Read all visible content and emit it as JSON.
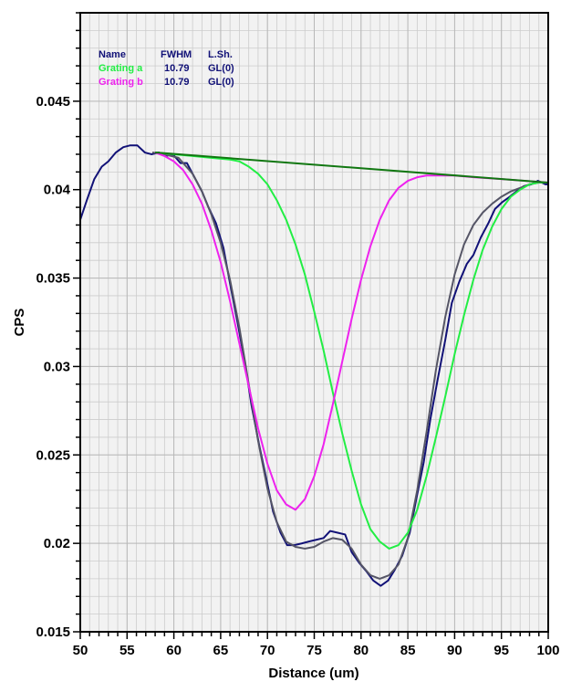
{
  "chart_data": {
    "type": "line",
    "xlabel": "Distance (um)",
    "ylabel": "CPS",
    "xlim": [
      50,
      100
    ],
    "ylim": [
      0.015,
      0.05
    ],
    "x_ticks": [
      50,
      55,
      60,
      65,
      70,
      75,
      80,
      85,
      90,
      95,
      100
    ],
    "x_tick_labels": [
      "50",
      "55",
      "60",
      "65",
      "70",
      "75",
      "80",
      "85",
      "90",
      "95",
      "100"
    ],
    "y_ticks": [
      0.015,
      0.02,
      0.025,
      0.03,
      0.035,
      0.04,
      0.045
    ],
    "y_tick_labels": [
      "0.015",
      "0.02",
      "0.025",
      "0.03",
      "0.035",
      "0.04",
      "0.045"
    ],
    "grid": true,
    "background": "#f2f2f2",
    "legend": {
      "placement": "top-left",
      "header": {
        "name": "Name",
        "fwhm": "FWHM",
        "lsh": "L.Sh."
      },
      "rows": [
        {
          "name": "Grating a",
          "fwhm": "10.79",
          "lsh": "GL(0)",
          "color": "#22ee44"
        },
        {
          "name": "Grating b",
          "fwhm": "10.79",
          "lsh": "GL(0)",
          "color": "#ee22ee"
        }
      ]
    },
    "series": [
      {
        "key": "measured",
        "color": "#111177",
        "points": [
          [
            50,
            0.0383
          ],
          [
            50.7,
            0.0394
          ],
          [
            51.5,
            0.0406
          ],
          [
            52.3,
            0.0413
          ],
          [
            53,
            0.0416
          ],
          [
            53.8,
            0.0421
          ],
          [
            54.6,
            0.0424
          ],
          [
            55.3,
            0.0425
          ],
          [
            56.1,
            0.0425
          ],
          [
            56.9,
            0.0421
          ],
          [
            57.6,
            0.042
          ],
          [
            58.4,
            0.0421
          ],
          [
            59.1,
            0.0419
          ],
          [
            59.9,
            0.042
          ],
          [
            60.7,
            0.0415
          ],
          [
            61.4,
            0.0415
          ],
          [
            62.2,
            0.0407
          ],
          [
            63,
            0.0399
          ],
          [
            63.7,
            0.039
          ],
          [
            64.5,
            0.0381
          ],
          [
            65.3,
            0.0367
          ],
          [
            66,
            0.0347
          ],
          [
            66.8,
            0.0325
          ],
          [
            67.6,
            0.0302
          ],
          [
            68.3,
            0.0278
          ],
          [
            69.1,
            0.0256
          ],
          [
            69.9,
            0.0236
          ],
          [
            70.6,
            0.0218
          ],
          [
            71.4,
            0.0206
          ],
          [
            72.1,
            0.0199
          ],
          [
            72.9,
            0.0199
          ],
          [
            73.7,
            0.02
          ],
          [
            74.4,
            0.0201
          ],
          [
            75.2,
            0.0202
          ],
          [
            76,
            0.0203
          ],
          [
            76.7,
            0.0207
          ],
          [
            77.5,
            0.0206
          ],
          [
            78.3,
            0.0205
          ],
          [
            79,
            0.0195
          ],
          [
            79.8,
            0.0189
          ],
          [
            80.6,
            0.0184
          ],
          [
            81.3,
            0.0179
          ],
          [
            82.1,
            0.0176
          ],
          [
            82.9,
            0.0179
          ],
          [
            83.6,
            0.0185
          ],
          [
            84.4,
            0.0193
          ],
          [
            85.2,
            0.0206
          ],
          [
            85.9,
            0.0225
          ],
          [
            86.7,
            0.0246
          ],
          [
            87.4,
            0.027
          ],
          [
            88.2,
            0.0293
          ],
          [
            89,
            0.0315
          ],
          [
            89.7,
            0.0336
          ],
          [
            90.5,
            0.0348
          ],
          [
            91.3,
            0.0358
          ],
          [
            92,
            0.0363
          ],
          [
            92.8,
            0.0373
          ],
          [
            93.6,
            0.0381
          ],
          [
            94.3,
            0.0389
          ],
          [
            95.1,
            0.0393
          ],
          [
            95.9,
            0.0396
          ],
          [
            96.6,
            0.0399
          ],
          [
            97.4,
            0.0402
          ],
          [
            98.2,
            0.0403
          ],
          [
            98.9,
            0.0405
          ],
          [
            99.7,
            0.0403
          ],
          [
            100,
            0.0403
          ]
        ]
      },
      {
        "key": "fit-envelope",
        "color": "#555566",
        "points": [
          [
            57.7,
            0.0421
          ],
          [
            59,
            0.042
          ],
          [
            60.5,
            0.0418
          ],
          [
            62,
            0.0409
          ],
          [
            63,
            0.0399
          ],
          [
            64,
            0.0386
          ],
          [
            65,
            0.037
          ],
          [
            66,
            0.0349
          ],
          [
            67,
            0.0322
          ],
          [
            68,
            0.029
          ],
          [
            69,
            0.0258
          ],
          [
            70,
            0.0231
          ],
          [
            71,
            0.0212
          ],
          [
            72,
            0.0201
          ],
          [
            73,
            0.0198
          ],
          [
            74,
            0.0197
          ],
          [
            75,
            0.0198
          ],
          [
            76,
            0.0201
          ],
          [
            77,
            0.0203
          ],
          [
            78,
            0.0202
          ],
          [
            79,
            0.0197
          ],
          [
            80,
            0.0188
          ],
          [
            81,
            0.0182
          ],
          [
            82,
            0.018
          ],
          [
            83,
            0.0182
          ],
          [
            84,
            0.0188
          ],
          [
            85,
            0.0203
          ],
          [
            86,
            0.023
          ],
          [
            87,
            0.0263
          ],
          [
            88,
            0.0298
          ],
          [
            89,
            0.0328
          ],
          [
            90,
            0.0352
          ],
          [
            91,
            0.0369
          ],
          [
            92,
            0.038
          ],
          [
            93,
            0.0387
          ],
          [
            94,
            0.0392
          ],
          [
            95,
            0.0396
          ],
          [
            96,
            0.0399
          ],
          [
            97,
            0.0401
          ],
          [
            98,
            0.0403
          ],
          [
            99,
            0.0404
          ],
          [
            100,
            0.0404
          ]
        ]
      },
      {
        "key": "grating-a",
        "color": "#22ee44",
        "points": [
          [
            58,
            0.0421
          ],
          [
            60,
            0.042
          ],
          [
            62,
            0.0419
          ],
          [
            64,
            0.0418
          ],
          [
            66,
            0.0417
          ],
          [
            67,
            0.0416
          ],
          [
            68,
            0.0413
          ],
          [
            69,
            0.0409
          ],
          [
            70,
            0.0403
          ],
          [
            71,
            0.0394
          ],
          [
            72,
            0.0383
          ],
          [
            73,
            0.0369
          ],
          [
            74,
            0.0352
          ],
          [
            75,
            0.0331
          ],
          [
            76,
            0.0309
          ],
          [
            77,
            0.0285
          ],
          [
            78,
            0.0262
          ],
          [
            79,
            0.0241
          ],
          [
            80,
            0.0222
          ],
          [
            81,
            0.0208
          ],
          [
            82,
            0.0201
          ],
          [
            83,
            0.0197
          ],
          [
            84,
            0.0199
          ],
          [
            85,
            0.0206
          ],
          [
            86,
            0.0219
          ],
          [
            87,
            0.0238
          ],
          [
            88,
            0.026
          ],
          [
            89,
            0.0283
          ],
          [
            90,
            0.0307
          ],
          [
            91,
            0.0329
          ],
          [
            92,
            0.0349
          ],
          [
            93,
            0.0366
          ],
          [
            94,
            0.0379
          ],
          [
            95,
            0.0389
          ],
          [
            96,
            0.0396
          ],
          [
            97,
            0.04
          ],
          [
            98,
            0.0403
          ],
          [
            99,
            0.0404
          ],
          [
            100,
            0.0404
          ]
        ]
      },
      {
        "key": "grating-b",
        "color": "#ee22ee",
        "points": [
          [
            58,
            0.0421
          ],
          [
            59,
            0.0419
          ],
          [
            60,
            0.0416
          ],
          [
            61,
            0.0411
          ],
          [
            62,
            0.0403
          ],
          [
            63,
            0.0392
          ],
          [
            64,
            0.0377
          ],
          [
            65,
            0.0359
          ],
          [
            66,
            0.0337
          ],
          [
            67,
            0.0313
          ],
          [
            68,
            0.0289
          ],
          [
            69,
            0.0265
          ],
          [
            70,
            0.0245
          ],
          [
            71,
            0.023
          ],
          [
            72,
            0.0222
          ],
          [
            73,
            0.0219
          ],
          [
            74,
            0.0225
          ],
          [
            75,
            0.0238
          ],
          [
            76,
            0.0256
          ],
          [
            77,
            0.0279
          ],
          [
            78,
            0.0303
          ],
          [
            79,
            0.0327
          ],
          [
            80,
            0.0349
          ],
          [
            81,
            0.0368
          ],
          [
            82,
            0.0383
          ],
          [
            83,
            0.0394
          ],
          [
            84,
            0.0401
          ],
          [
            85,
            0.0405
          ],
          [
            86,
            0.0407
          ],
          [
            87,
            0.0408
          ],
          [
            88,
            0.0408
          ],
          [
            90,
            0.0408
          ],
          [
            92,
            0.0407
          ],
          [
            95,
            0.0406
          ],
          [
            100,
            0.0404
          ]
        ]
      },
      {
        "key": "baseline",
        "color": "#117711",
        "points": [
          [
            58,
            0.0421
          ],
          [
            100,
            0.0404
          ]
        ]
      }
    ]
  }
}
